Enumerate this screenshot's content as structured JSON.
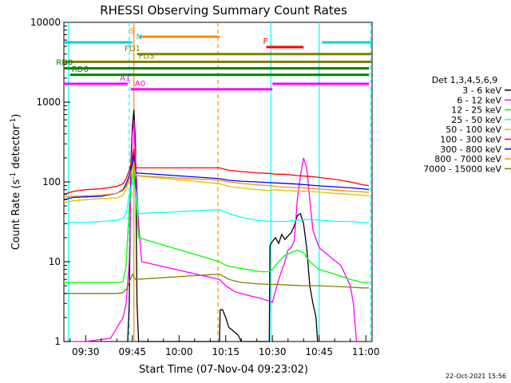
{
  "chart_data": {
    "type": "line",
    "title": "RHESSI Observing Summary Count Rates",
    "xlabel": "Start Time (07-Nov-04 09:23:02)",
    "ylabel_main": "Count Rate (s",
    "ylabel_sup": "-1",
    "ylabel_mid": " detector",
    "ylabel_end": ")",
    "y_scale": "log",
    "ylim": [
      1,
      10000
    ],
    "xlim": [
      "09:23",
      "11:02"
    ],
    "x_minutes_range": [
      563,
      662
    ],
    "x_ticks": [
      {
        "label": "09:30",
        "min": 570
      },
      {
        "label": "09:45",
        "min": 585
      },
      {
        "label": "10:00",
        "min": 600
      },
      {
        "label": "10:15",
        "min": 615
      },
      {
        "label": "10:30",
        "min": 630
      },
      {
        "label": "10:45",
        "min": 645
      },
      {
        "label": "11:00",
        "min": 660
      }
    ],
    "y_ticks": [
      {
        "label": "1",
        "value": 1
      },
      {
        "label": "10",
        "value": 10
      },
      {
        "label": "100",
        "value": 100
      },
      {
        "label": "1000",
        "value": 1000
      },
      {
        "label": "10000",
        "value": 10000
      }
    ],
    "legend_title": "Det 1,3,4,5,6,9",
    "legend_position": "right",
    "timestamp": "22-Oct-2021 15:56",
    "series": [
      {
        "name": "3 - 6 keV",
        "color": "#000000",
        "points": [
          [
            583.5,
            1
          ],
          [
            584,
            3
          ],
          [
            584.5,
            150
          ],
          [
            585,
            500
          ],
          [
            585.5,
            800
          ],
          [
            586,
            300
          ],
          [
            586.5,
            3
          ],
          [
            587,
            1
          ],
          [
            613,
            1
          ],
          [
            613.2,
            2.5
          ],
          [
            614,
            2.5
          ],
          [
            615,
            2
          ],
          [
            616,
            1.5
          ],
          [
            617,
            1.4
          ],
          [
            618,
            1.3
          ],
          [
            619,
            1.2
          ],
          [
            620,
            1
          ],
          [
            629,
            1
          ],
          [
            629.2,
            16
          ],
          [
            630,
            18
          ],
          [
            631,
            20
          ],
          [
            632,
            17
          ],
          [
            633,
            22
          ],
          [
            634,
            19
          ],
          [
            635,
            21
          ],
          [
            636,
            23
          ],
          [
            637,
            28
          ],
          [
            638,
            38
          ],
          [
            639,
            40
          ],
          [
            640,
            30
          ],
          [
            641,
            15
          ],
          [
            642,
            5
          ],
          [
            643,
            3
          ],
          [
            644,
            2
          ],
          [
            644.5,
            1
          ]
        ]
      },
      {
        "name": "6 - 12 keV",
        "color": "#ff00ff",
        "points": [
          [
            563,
            1
          ],
          [
            570,
            1
          ],
          [
            578,
            1.1
          ],
          [
            582,
            2
          ],
          [
            583,
            3
          ],
          [
            584,
            10
          ],
          [
            584.5,
            80
          ],
          [
            585,
            400
          ],
          [
            585.5,
            600
          ],
          [
            586,
            200
          ],
          [
            587,
            30
          ],
          [
            588,
            10
          ],
          [
            613,
            6
          ],
          [
            615,
            5
          ],
          [
            618,
            4.2
          ],
          [
            622,
            3.8
          ],
          [
            626,
            3.5
          ],
          [
            629,
            3.2
          ],
          [
            630,
            3.1
          ],
          [
            632,
            6
          ],
          [
            634,
            10
          ],
          [
            635,
            14
          ],
          [
            636,
            15
          ],
          [
            637,
            18
          ],
          [
            638,
            60
          ],
          [
            639,
            120
          ],
          [
            640,
            200
          ],
          [
            641,
            150
          ],
          [
            642,
            60
          ],
          [
            643,
            25
          ],
          [
            645,
            15
          ],
          [
            648,
            12
          ],
          [
            652,
            9
          ],
          [
            655,
            5
          ],
          [
            656,
            3
          ],
          [
            657,
            1
          ]
        ]
      },
      {
        "name": "12 - 25 keV",
        "color": "#00ff00",
        "points": [
          [
            563,
            5.5
          ],
          [
            566,
            5.5
          ],
          [
            570,
            5.5
          ],
          [
            575,
            5.5
          ],
          [
            580,
            5.5
          ],
          [
            582,
            5.6
          ],
          [
            583,
            9
          ],
          [
            584,
            50
          ],
          [
            585,
            110
          ],
          [
            585.5,
            160
          ],
          [
            586,
            70
          ],
          [
            587,
            20
          ],
          [
            613,
            10
          ],
          [
            615,
            9
          ],
          [
            618,
            8.5
          ],
          [
            622,
            8
          ],
          [
            626,
            7.5
          ],
          [
            629,
            7.5
          ],
          [
            630,
            8
          ],
          [
            631,
            9
          ],
          [
            632,
            10
          ],
          [
            634,
            12
          ],
          [
            636,
            13
          ],
          [
            638,
            14
          ],
          [
            640,
            13
          ],
          [
            642,
            10
          ],
          [
            645,
            8
          ],
          [
            650,
            7
          ],
          [
            655,
            6
          ],
          [
            659,
            5.5
          ],
          [
            661,
            5.5
          ]
        ]
      },
      {
        "name": "25 - 50 keV",
        "color": "#00ffff",
        "points": [
          [
            563,
            30
          ],
          [
            566,
            31
          ],
          [
            570,
            31
          ],
          [
            575,
            32
          ],
          [
            580,
            33
          ],
          [
            582,
            35
          ],
          [
            583,
            40
          ],
          [
            584,
            70
          ],
          [
            585,
            100
          ],
          [
            586,
            80
          ],
          [
            587,
            40
          ],
          [
            613,
            45
          ],
          [
            616,
            40
          ],
          [
            620,
            36
          ],
          [
            625,
            33
          ],
          [
            629,
            32
          ],
          [
            631,
            32
          ],
          [
            634,
            32
          ],
          [
            638,
            33
          ],
          [
            642,
            34
          ],
          [
            646,
            33
          ],
          [
            650,
            32
          ],
          [
            655,
            32
          ],
          [
            659,
            31
          ],
          [
            661,
            31
          ]
        ]
      },
      {
        "name": "50 - 100 keV",
        "color": "#d4c800",
        "points": [
          [
            563,
            55
          ],
          [
            566,
            58
          ],
          [
            570,
            60
          ],
          [
            575,
            62
          ],
          [
            580,
            63
          ],
          [
            582,
            68
          ],
          [
            583,
            80
          ],
          [
            584,
            110
          ],
          [
            585,
            160
          ],
          [
            585.5,
            190
          ],
          [
            586,
            120
          ],
          [
            613,
            95
          ],
          [
            616,
            88
          ],
          [
            620,
            84
          ],
          [
            625,
            80
          ],
          [
            629,
            78
          ],
          [
            631,
            80
          ],
          [
            634,
            78
          ],
          [
            638,
            77
          ],
          [
            642,
            76
          ],
          [
            646,
            74
          ],
          [
            650,
            72
          ],
          [
            655,
            70
          ],
          [
            659,
            68
          ],
          [
            661,
            67
          ]
        ]
      },
      {
        "name": "100 - 300 keV",
        "color": "#ff0000",
        "points": [
          [
            563,
            70
          ],
          [
            566,
            76
          ],
          [
            570,
            80
          ],
          [
            575,
            82
          ],
          [
            580,
            88
          ],
          [
            582,
            95
          ],
          [
            583,
            110
          ],
          [
            584,
            140
          ],
          [
            585,
            200
          ],
          [
            585.5,
            260
          ],
          [
            586,
            150
          ],
          [
            613,
            150
          ],
          [
            616,
            140
          ],
          [
            620,
            135
          ],
          [
            625,
            130
          ],
          [
            629,
            128
          ],
          [
            631,
            125
          ],
          [
            634,
            125
          ],
          [
            638,
            120
          ],
          [
            641,
            118
          ],
          [
            644,
            115
          ],
          [
            648,
            110
          ],
          [
            652,
            105
          ],
          [
            656,
            98
          ],
          [
            659,
            92
          ],
          [
            661,
            90
          ]
        ]
      },
      {
        "name": "300 - 800 keV",
        "color": "#0000ff",
        "points": [
          [
            563,
            60
          ],
          [
            566,
            64
          ],
          [
            570,
            65
          ],
          [
            575,
            66
          ],
          [
            580,
            72
          ],
          [
            582,
            80
          ],
          [
            583,
            95
          ],
          [
            584,
            120
          ],
          [
            585,
            170
          ],
          [
            585.5,
            220
          ],
          [
            586,
            130
          ],
          [
            613,
            110
          ],
          [
            616,
            105
          ],
          [
            620,
            102
          ],
          [
            625,
            100
          ],
          [
            629,
            98
          ],
          [
            631,
            97
          ],
          [
            634,
            96
          ],
          [
            638,
            94
          ],
          [
            641,
            92
          ],
          [
            644,
            90
          ],
          [
            648,
            88
          ],
          [
            652,
            86
          ],
          [
            656,
            84
          ],
          [
            659,
            82
          ],
          [
            661,
            80
          ]
        ]
      },
      {
        "name": "800 - 7000 keV",
        "color": "#ff8c00",
        "points": [
          [
            563,
            65
          ],
          [
            566,
            66
          ],
          [
            570,
            67
          ],
          [
            575,
            68
          ],
          [
            580,
            72
          ],
          [
            582,
            78
          ],
          [
            583,
            88
          ],
          [
            584,
            110
          ],
          [
            585,
            150
          ],
          [
            585.5,
            180
          ],
          [
            586,
            120
          ],
          [
            613,
            105
          ],
          [
            616,
            100
          ],
          [
            620,
            96
          ],
          [
            625,
            92
          ],
          [
            629,
            90
          ],
          [
            631,
            88
          ],
          [
            634,
            86
          ],
          [
            638,
            85
          ],
          [
            641,
            84
          ],
          [
            644,
            82
          ],
          [
            648,
            80
          ],
          [
            652,
            78
          ],
          [
            656,
            76
          ],
          [
            659,
            75
          ],
          [
            661,
            74
          ]
        ]
      },
      {
        "name": "7000 - 15000 keV",
        "color": "#808000",
        "points": [
          [
            563,
            4
          ],
          [
            570,
            4
          ],
          [
            575,
            4
          ],
          [
            580,
            4
          ],
          [
            582,
            4.1
          ],
          [
            583,
            4.5
          ],
          [
            584,
            5.5
          ],
          [
            585,
            7
          ],
          [
            586,
            6
          ],
          [
            613,
            7
          ],
          [
            616,
            6
          ],
          [
            620,
            5.5
          ],
          [
            625,
            5.3
          ],
          [
            629,
            5.2
          ],
          [
            631,
            5.2
          ],
          [
            635,
            5.1
          ],
          [
            640,
            5.0
          ],
          [
            645,
            5.0
          ],
          [
            650,
            4.9
          ],
          [
            655,
            4.8
          ],
          [
            659,
            4.7
          ],
          [
            661,
            4.7
          ]
        ]
      }
    ],
    "state_bars": [
      {
        "label": "S",
        "color": "#ff8c00",
        "from": 587,
        "to": 613,
        "level": 6600,
        "label_min": 584.0
      },
      {
        "label": "N",
        "color": "#00d0d0",
        "from": 563,
        "to": 585,
        "level": 5600,
        "label_min": 586.2,
        "second": [
          646,
          662
        ]
      },
      {
        "label": "F",
        "color": "#ff0000",
        "from": 628,
        "to": 640,
        "level": 4900,
        "label_min": 627.0
      },
      {
        "label": "FD1",
        "color": "#808000",
        "from": 586.5,
        "to": 630,
        "level": 4000,
        "label_min": 582.5,
        "second": [
          630,
          662
        ]
      },
      {
        "label": "FD3",
        "color": "#808000",
        "from": 563,
        "to": 630,
        "level": 3200,
        "label_min": 587.0,
        "second": [
          630,
          662
        ]
      },
      {
        "label": "RD0",
        "color": "#008000",
        "from": 563,
        "to": 661,
        "level": 2650,
        "label_min": 560.5
      },
      {
        "label": "RD6",
        "color": "#008000",
        "from": 565,
        "to": 661,
        "level": 2200,
        "label_min": 565.5
      },
      {
        "label": "A1",
        "color": "#ff00ff",
        "from": 563,
        "to": 583.5,
        "level": 1700,
        "label_min": 581.0,
        "second": [
          630,
          661
        ]
      },
      {
        "label": "A0",
        "color": "#ff00ff",
        "from": 584.5,
        "to": 630,
        "level": 1450,
        "label_min": 585.8
      }
    ],
    "vertical_lines": [
      {
        "min": 564.5,
        "color": "#00ffff",
        "dash": false
      },
      {
        "min": 584.0,
        "color": "#00ffff",
        "dash": true
      },
      {
        "min": 585.5,
        "color": "#ff8c00",
        "dash": false
      },
      {
        "min": 612.5,
        "color": "#ff8c00",
        "dash": true
      },
      {
        "min": 629.5,
        "color": "#00ffff",
        "dash": false
      },
      {
        "min": 645.0,
        "color": "#00ffff",
        "dash": false
      },
      {
        "min": 661.5,
        "color": "#00ffff",
        "dash": true
      }
    ]
  }
}
